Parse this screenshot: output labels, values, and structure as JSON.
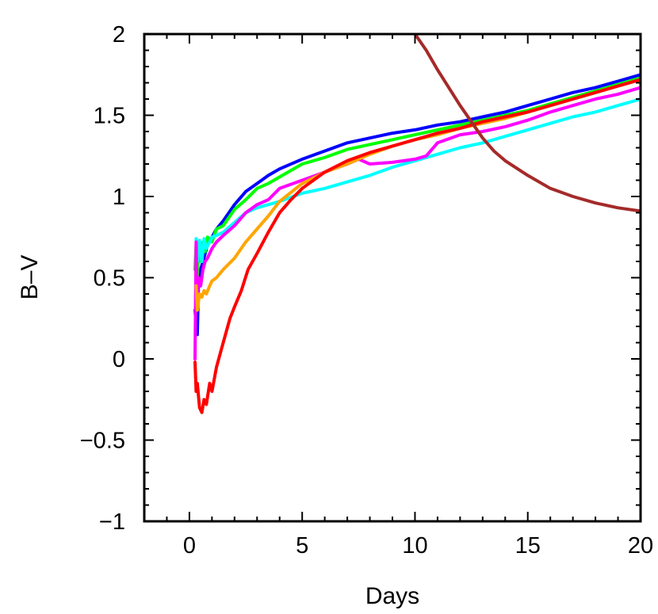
{
  "chart_data": {
    "type": "line",
    "xlabel": "Days",
    "ylabel": "B–V",
    "xlim": [
      -2,
      20
    ],
    "ylim": [
      -1,
      2
    ],
    "xticks": [
      0,
      5,
      10,
      15,
      20
    ],
    "xtick_labels": [
      "0",
      "5",
      "10",
      "15",
      "20"
    ],
    "yticks": [
      -1,
      -0.5,
      0,
      0.5,
      1,
      1.5,
      2
    ],
    "ytick_labels": [
      "−1",
      "−0.5",
      "0",
      "0.5",
      "1",
      "1.5",
      "2"
    ],
    "grid": false,
    "legend": "none",
    "series": [
      {
        "color": "#0000ff",
        "x": [
          0.25,
          0.3,
          0.35,
          0.4,
          0.5,
          0.6,
          0.7,
          0.8,
          1.0,
          1.2,
          1.5,
          2.0,
          2.5,
          3.0,
          3.5,
          4.0,
          5.0,
          6.0,
          7.0,
          8.0,
          9.0,
          10.0,
          11.0,
          12.0,
          13.0,
          14.0,
          15.0,
          16.0,
          17.0,
          18.0,
          19.0,
          20.0
        ],
        "y": [
          0.3,
          0.2,
          0.15,
          0.45,
          0.55,
          0.6,
          0.65,
          0.7,
          0.75,
          0.8,
          0.85,
          0.95,
          1.03,
          1.08,
          1.13,
          1.17,
          1.23,
          1.28,
          1.33,
          1.36,
          1.39,
          1.41,
          1.44,
          1.46,
          1.49,
          1.52,
          1.56,
          1.6,
          1.64,
          1.67,
          1.71,
          1.75
        ]
      },
      {
        "color": "#00ff00",
        "x": [
          0.25,
          0.3,
          0.35,
          0.4,
          0.5,
          0.6,
          0.7,
          0.8,
          1.0,
          1.2,
          1.5,
          2.0,
          2.5,
          3.0,
          3.5,
          4.0,
          5.0,
          6.0,
          7.0,
          8.0,
          9.0,
          10.0,
          11.0,
          12.0,
          13.0,
          14.0,
          15.0,
          16.0,
          17.0,
          18.0,
          19.0,
          20.0
        ],
        "y": [
          0.55,
          0.7,
          0.5,
          0.65,
          0.6,
          0.72,
          0.66,
          0.75,
          0.72,
          0.8,
          0.82,
          0.92,
          0.98,
          1.05,
          1.08,
          1.12,
          1.2,
          1.24,
          1.29,
          1.32,
          1.35,
          1.38,
          1.41,
          1.44,
          1.47,
          1.5,
          1.53,
          1.57,
          1.61,
          1.65,
          1.69,
          1.73
        ]
      },
      {
        "color": "#00ffff",
        "x": [
          0.3,
          0.35,
          0.45,
          0.55,
          0.65,
          0.75,
          0.9,
          1.0,
          1.2,
          1.5,
          2.0,
          2.5,
          3.0,
          3.5,
          4.0,
          5.0,
          6.0,
          7.0,
          8.0,
          9.0,
          10.0,
          11.0,
          12.0,
          13.0,
          14.0,
          15.0,
          16.0,
          17.0,
          18.0,
          19.0,
          20.0
        ],
        "y": [
          0.74,
          0.6,
          0.73,
          0.6,
          0.74,
          0.68,
          0.72,
          0.75,
          0.76,
          0.78,
          0.84,
          0.9,
          0.93,
          0.95,
          0.97,
          1.02,
          1.05,
          1.09,
          1.13,
          1.18,
          1.22,
          1.26,
          1.3,
          1.33,
          1.37,
          1.41,
          1.45,
          1.49,
          1.52,
          1.56,
          1.6
        ]
      },
      {
        "color": "#ff00ff",
        "x": [
          0.25,
          0.3,
          0.35,
          0.4,
          0.5,
          0.6,
          0.7,
          0.8,
          1.0,
          1.2,
          1.5,
          2.0,
          2.5,
          3.0,
          3.5,
          4.0,
          5.0,
          6.0,
          7.0,
          7.5,
          8.0,
          9.0,
          10.0,
          10.5,
          11.0,
          12.0,
          13.0,
          14.0,
          15.0,
          16.0,
          17.0,
          18.0,
          19.0,
          20.0
        ],
        "y": [
          0.0,
          0.72,
          0.3,
          0.5,
          0.45,
          0.55,
          0.6,
          0.62,
          0.68,
          0.72,
          0.76,
          0.82,
          0.9,
          0.95,
          0.98,
          1.05,
          1.1,
          1.15,
          1.2,
          1.23,
          1.2,
          1.21,
          1.23,
          1.25,
          1.33,
          1.38,
          1.4,
          1.43,
          1.47,
          1.52,
          1.56,
          1.6,
          1.63,
          1.67
        ]
      },
      {
        "color": "#ffa500",
        "x": [
          0.3,
          0.35,
          0.45,
          0.55,
          0.65,
          0.75,
          0.9,
          1.0,
          1.2,
          1.5,
          2.0,
          2.5,
          3.0,
          3.5,
          4.0,
          5.0,
          6.0,
          7.0,
          8.0,
          9.0,
          10.0,
          11.0,
          12.0,
          13.0,
          14.0,
          15.0,
          16.0,
          17.0,
          18.0,
          19.0,
          20.0
        ],
        "y": [
          0.45,
          0.3,
          0.4,
          0.38,
          0.42,
          0.4,
          0.45,
          0.48,
          0.5,
          0.55,
          0.62,
          0.72,
          0.8,
          0.88,
          0.97,
          1.08,
          1.15,
          1.2,
          1.26,
          1.31,
          1.35,
          1.38,
          1.42,
          1.45,
          1.48,
          1.52,
          1.56,
          1.6,
          1.64,
          1.68,
          1.72
        ]
      },
      {
        "color": "#ff0000",
        "x": [
          0.25,
          0.3,
          0.35,
          0.45,
          0.55,
          0.65,
          0.75,
          0.9,
          1.0,
          1.2,
          1.4,
          1.6,
          1.8,
          2.0,
          2.3,
          2.6,
          3.0,
          3.5,
          4.0,
          4.5,
          5.0,
          6.0,
          7.0,
          8.0,
          9.0,
          10.0,
          11.0,
          12.0,
          13.0,
          14.0,
          15.0,
          16.0,
          17.0,
          18.0,
          19.0,
          20.0
        ],
        "y": [
          -0.02,
          -0.2,
          -0.15,
          -0.3,
          -0.33,
          -0.25,
          -0.28,
          -0.15,
          -0.2,
          -0.05,
          0.05,
          0.15,
          0.25,
          0.32,
          0.42,
          0.55,
          0.65,
          0.78,
          0.9,
          0.98,
          1.05,
          1.15,
          1.22,
          1.27,
          1.31,
          1.35,
          1.39,
          1.42,
          1.46,
          1.49,
          1.52,
          1.56,
          1.6,
          1.64,
          1.68,
          1.72
        ]
      },
      {
        "color": "#a52a2a",
        "x": [
          10.0,
          10.5,
          11.0,
          11.5,
          12.0,
          12.5,
          13.0,
          13.5,
          14.0,
          15.0,
          16.0,
          17.0,
          18.0,
          19.0,
          20.0
        ],
        "y": [
          2.0,
          1.9,
          1.78,
          1.67,
          1.56,
          1.46,
          1.36,
          1.28,
          1.22,
          1.13,
          1.05,
          1.0,
          0.96,
          0.93,
          0.91
        ]
      }
    ]
  }
}
